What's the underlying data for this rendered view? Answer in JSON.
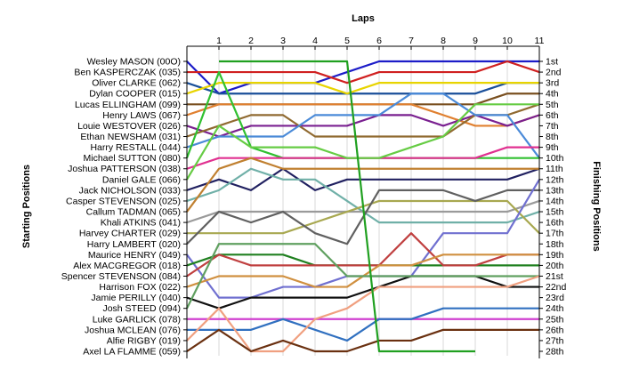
{
  "chart_data": {
    "type": "line",
    "title": "Laps",
    "xlabel": "Laps",
    "ylabel_left": "Starting Positions",
    "ylabel_right": "Finishing Positions",
    "x": [
      0,
      1,
      2,
      3,
      4,
      5,
      6,
      7,
      8,
      9,
      10,
      11
    ],
    "x_tick_labels": [
      "1",
      "2",
      "3",
      "4",
      "5",
      "6",
      "7",
      "8",
      "9",
      "10",
      "11"
    ],
    "y_axis": "position rank (1 = top)",
    "ylim": [
      1,
      28
    ],
    "starting_order": [
      "Wesley MASON (00O)",
      "Ben KASPERCZAK (035)",
      "Oliver CLARKE (062)",
      "Dylan COOPER (015)",
      "Lucas ELLINGHAM (099)",
      "Henry LAWS (067)",
      "Louie WESTOVER (026)",
      "Ethan NEWSHAM (031)",
      "Harry RESTALL (044)",
      "Michael SUTTON (080)",
      "Joshua PATTERSON (038)",
      "Daniel GALE (066)",
      "Jack NICHOLSON (033)",
      "Casper STEVENSON (025)",
      "Callum TADMAN (065)",
      "Khali ATKINS (041)",
      "Harvey CHARTER (029)",
      "Harry LAMBERT (020)",
      "Maurice HENRY (049)",
      "Alex MACGREGOR (018)",
      "Spencer STEVENSON (084)",
      "Harrison FOX (022)",
      "Jamie PERILLY (040)",
      "Josh STEED (094)",
      "Luke GARLICK (078)",
      "Joshua MCLEAN (076)",
      "Alfie RIGBY (019)",
      "Axel LA FLAMME (059)"
    ],
    "finishing_labels": [
      "1st",
      "2nd",
      "3rd",
      "4th",
      "5th",
      "6th",
      "7th",
      "8th",
      "9th",
      "10th",
      "11th",
      "12th",
      "13th",
      "14th",
      "15th",
      "16th",
      "17th",
      "18th",
      "19th",
      "20th",
      "21st",
      "22nd",
      "23rd",
      "24th",
      "25th",
      "26th",
      "27th",
      "28th"
    ],
    "series": [
      {
        "name": "Wesley MASON (00O)",
        "color": "#1c1cc8",
        "values": [
          1,
          4,
          3,
          3,
          3,
          2,
          1,
          1,
          1,
          1,
          1,
          1
        ]
      },
      {
        "name": "Ben KASPERCZAK (035)",
        "color": "#d02020",
        "values": [
          2,
          2,
          2,
          2,
          2,
          3,
          2,
          2,
          2,
          2,
          1,
          2
        ]
      },
      {
        "name": "Oliver CLARKE (062)",
        "color": "#1a4f9a",
        "values": [
          3,
          4,
          4,
          4,
          4,
          4,
          4,
          4,
          4,
          4,
          3,
          3
        ]
      },
      {
        "name": "Dylan COOPER (015)",
        "color": "#e8d400",
        "values": [
          4,
          3,
          3,
          3,
          3,
          4,
          3,
          3,
          3,
          3,
          3,
          3
        ]
      },
      {
        "name": "Lucas ELLINGHAM (099)",
        "color": "#7a5020",
        "values": [
          5,
          5,
          5,
          5,
          5,
          5,
          5,
          5,
          5,
          5,
          4,
          4
        ]
      },
      {
        "name": "Henry LAWS (067)",
        "color": "#e08030",
        "values": [
          6,
          5,
          5,
          5,
          5,
          5,
          5,
          5,
          6,
          7,
          7,
          6
        ]
      },
      {
        "name": "Louie WESTOVER (026)",
        "color": "#7a2090",
        "values": [
          7,
          8,
          7,
          7,
          7,
          7,
          6,
          6,
          7,
          6,
          7,
          6
        ]
      },
      {
        "name": "Ethan NEWSHAM (031)",
        "color": "#906a30",
        "values": [
          8,
          7,
          6,
          6,
          8,
          8,
          8,
          8,
          8,
          6,
          6,
          5
        ]
      },
      {
        "name": "Harry RESTALL (044)",
        "color": "#4a8ad8",
        "values": [
          9,
          8,
          8,
          8,
          6,
          6,
          6,
          4,
          4,
          6,
          6,
          10
        ]
      },
      {
        "name": "Michael SUTTON (080)",
        "color": "#30c030",
        "values": [
          10,
          2,
          9,
          10,
          10,
          10,
          10,
          10,
          10,
          10,
          10,
          10
        ]
      },
      {
        "name": "Joshua PATTERSON (038)",
        "color": "#e03090",
        "values": [
          11,
          10,
          10,
          10,
          10,
          10,
          10,
          10,
          10,
          10,
          9,
          9
        ]
      },
      {
        "name": "Daniel GALE (066)",
        "color": "#66cc44",
        "values": [
          12,
          7,
          9,
          9,
          9,
          10,
          10,
          9,
          8,
          5,
          5,
          5
        ]
      },
      {
        "name": "Jack NICHOLSON (033)",
        "color": "#202060",
        "values": [
          13,
          12,
          13,
          11,
          13,
          12,
          12,
          12,
          12,
          12,
          12,
          11
        ]
      },
      {
        "name": "Casper STEVENSON (025)",
        "color": "#70b0a8",
        "values": [
          14,
          13,
          11,
          12,
          12,
          14,
          16,
          16,
          16,
          16,
          16,
          15
        ]
      },
      {
        "name": "Callum TADMAN (065)",
        "color": "#c08030",
        "values": [
          15,
          11,
          10,
          11,
          11,
          11,
          11,
          11,
          11,
          11,
          11,
          11
        ]
      },
      {
        "name": "Khali ATKINS (041)",
        "color": "#9a9a9a",
        "values": [
          16,
          15,
          15,
          15,
          15,
          15,
          15,
          15,
          15,
          15,
          15,
          14
        ]
      },
      {
        "name": "Harvey CHARTER (029)",
        "color": "#a8a850",
        "values": [
          17,
          17,
          17,
          17,
          16,
          15,
          14,
          14,
          14,
          14,
          14,
          17
        ]
      },
      {
        "name": "Harry LAMBERT (020)",
        "color": "#606060",
        "values": [
          18,
          15,
          16,
          15,
          17,
          18,
          13,
          13,
          13,
          14,
          13,
          13
        ]
      },
      {
        "name": "Maurice HENRY (049)",
        "color": "#7070d0",
        "values": [
          19,
          23,
          23,
          22,
          22,
          21,
          21,
          21,
          17,
          17,
          17,
          12
        ]
      },
      {
        "name": "Alex MACGREGOR (018)",
        "color": "#208020",
        "values": [
          20,
          19,
          19,
          19,
          20,
          20,
          20,
          20,
          20,
          20,
          20,
          20
        ]
      },
      {
        "name": "Spencer STEVENSON (084)",
        "color": "#c04040",
        "values": [
          21,
          19,
          20,
          20,
          20,
          20,
          20,
          17,
          20,
          20,
          19,
          19
        ]
      },
      {
        "name": "Harrison FOX (022)",
        "color": "#d09040",
        "values": [
          22,
          21,
          21,
          21,
          22,
          22,
          20,
          20,
          19,
          19,
          19,
          19
        ]
      },
      {
        "name": "Jamie PERILLY (040)",
        "color": "#101010",
        "values": [
          23,
          24,
          23,
          23,
          23,
          23,
          22,
          21,
          21,
          21,
          22,
          22
        ]
      },
      {
        "name": "Josh STEED (094)",
        "color": "#60a060",
        "values": [
          24,
          18,
          18,
          18,
          18,
          21,
          21,
          21,
          21,
          21,
          21,
          21
        ]
      },
      {
        "name": "Luke GARLICK (078)",
        "color": "#d040d0",
        "values": [
          25,
          25,
          25,
          25,
          25,
          25,
          25,
          25,
          25,
          25,
          25,
          25
        ]
      },
      {
        "name": "Joshua MCLEAN (076)",
        "color": "#3070c0",
        "values": [
          26,
          26,
          26,
          25,
          26,
          27,
          25,
          25,
          24,
          24,
          24,
          24
        ]
      },
      {
        "name": "Alfie RIGBY (019)",
        "color": "#f0a080",
        "values": [
          27,
          24,
          28,
          28,
          25,
          24,
          22,
          22,
          22,
          22,
          22,
          21
        ]
      },
      {
        "name": "Axel LA FLAMME (059)",
        "color": "#6a3010",
        "values": [
          28,
          26,
          28,
          27,
          28,
          28,
          27,
          27,
          26,
          26,
          26,
          26
        ]
      }
    ],
    "special_series": {
      "name": "",
      "color": "#20a020",
      "values": [
        1,
        1,
        1,
        1,
        1,
        1,
        28,
        28,
        28,
        28
      ],
      "x": [
        1,
        2,
        3,
        4,
        5,
        5,
        6,
        7,
        8,
        9
      ]
    },
    "grid": true,
    "legend": "left-axis-labels"
  }
}
